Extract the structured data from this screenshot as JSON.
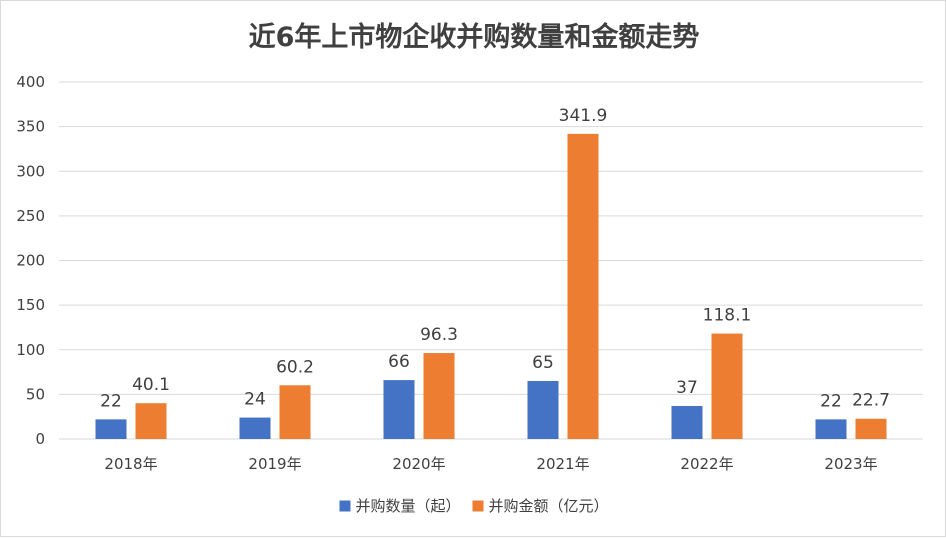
{
  "chart_data": {
    "type": "bar",
    "title": "近6年上市物企收并购数量和金额走势",
    "categories": [
      "2018年",
      "2019年",
      "2020年",
      "2021年",
      "2022年",
      "2023年"
    ],
    "series": [
      {
        "name": "并购数量（起）",
        "color": "#4472c4",
        "values": [
          22,
          24,
          66,
          65,
          37,
          22
        ],
        "labels": [
          "22",
          "24",
          "66",
          "65",
          "37",
          "22"
        ]
      },
      {
        "name": "并购金额（亿元）",
        "color": "#ed7d31",
        "values": [
          40.1,
          60.2,
          96.3,
          341.9,
          118.1,
          22.7
        ],
        "labels": [
          "40.1",
          "60.2",
          "96.3",
          "341.9",
          "118.1",
          "22.7"
        ]
      }
    ],
    "ylim": [
      0,
      400
    ],
    "yticks": [
      "0",
      "50",
      "100",
      "150",
      "200",
      "250",
      "300",
      "350",
      "400"
    ],
    "grid": true,
    "legend_position": "bottom"
  }
}
